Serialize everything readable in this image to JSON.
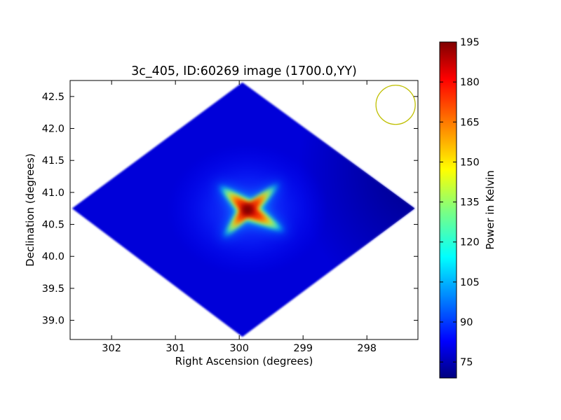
{
  "chart_data": {
    "type": "heatmap",
    "title": "3c_405, ID:60269 image (1700.0,YY)",
    "xlabel": "Right Ascension (degrees)",
    "ylabel": "Declination (degrees)",
    "x_inverted": true,
    "xlim": [
      302.65,
      297.2
    ],
    "ylim": [
      38.7,
      42.75
    ],
    "xticks": [
      302,
      301,
      300,
      299,
      298
    ],
    "yticks": [
      39.0,
      39.5,
      40.0,
      40.5,
      41.0,
      41.5,
      42.0,
      42.5
    ],
    "ytick_labels": [
      "39.0",
      "39.5",
      "40.0",
      "40.5",
      "41.0",
      "41.5",
      "42.0",
      "42.5"
    ],
    "grid": false,
    "footprint": {
      "shape": "diamond",
      "corners": [
        {
          "ra": 299.95,
          "dec": 42.72
        },
        {
          "ra": 297.25,
          "dec": 40.75
        },
        {
          "ra": 299.95,
          "dec": 38.74
        },
        {
          "ra": 302.62,
          "dec": 40.75
        }
      ]
    },
    "source": {
      "ra": 299.87,
      "dec": 40.73,
      "peak": 195
    },
    "background_level": 80,
    "beam_marker": {
      "ra": 297.55,
      "dec": 42.37,
      "color": "#bfbf00"
    },
    "colorbar": {
      "label": "Power in Kelvin",
      "colormap": "jet",
      "vmin": 69,
      "vmax": 195,
      "ticks": [
        75,
        90,
        105,
        120,
        135,
        150,
        165,
        180,
        195
      ]
    }
  }
}
